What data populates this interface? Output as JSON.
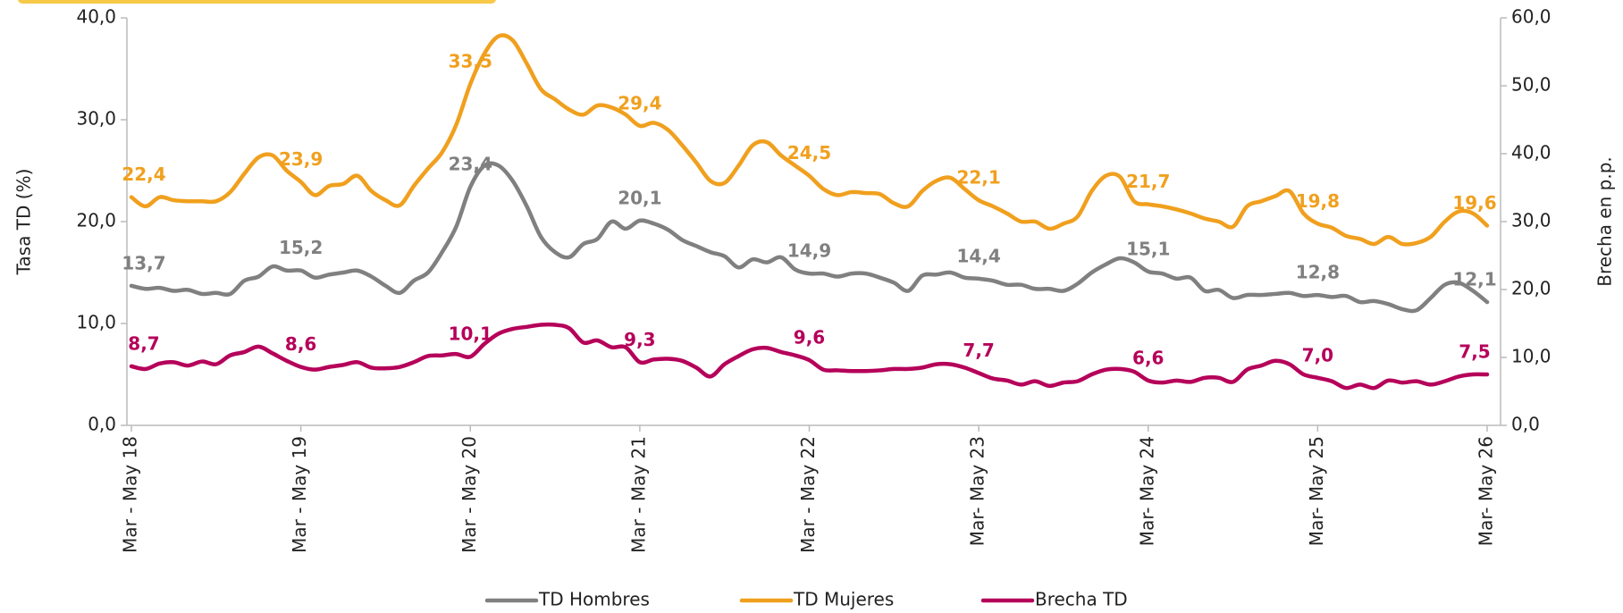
{
  "chart_data": {
    "type": "line",
    "ylabel": "Tasa TD (%)",
    "y2label": "Brecha en p.p.",
    "categories": [
      "Mar - May 18",
      null,
      null,
      null,
      null,
      null,
      null,
      null,
      null,
      null,
      null,
      null,
      "Mar - May 19",
      null,
      null,
      null,
      null,
      null,
      null,
      null,
      null,
      null,
      null,
      null,
      "Mar - May 20",
      null,
      null,
      null,
      null,
      null,
      null,
      null,
      null,
      null,
      null,
      null,
      "Mar - May 21",
      null,
      null,
      null,
      null,
      null,
      null,
      null,
      null,
      null,
      null,
      null,
      "Mar - May 22",
      null,
      null,
      null,
      null,
      null,
      null,
      null,
      null,
      null,
      null,
      null,
      "Mar- May 23",
      null,
      null,
      null,
      null,
      null,
      null,
      null,
      null,
      null,
      null,
      null,
      "Mar- May 24",
      null,
      null,
      null,
      null,
      null,
      null,
      null,
      null,
      null,
      null,
      null,
      "Mar- May 25",
      null,
      null,
      null,
      null,
      null,
      null,
      null,
      null,
      null,
      null,
      null,
      "Mar- May 26"
    ],
    "ylim": [
      0,
      40
    ],
    "yticks": [
      {
        "value": 0,
        "label": "0,0"
      },
      {
        "value": 10,
        "label": "10,0"
      },
      {
        "value": 20,
        "label": "20,0"
      },
      {
        "value": 30,
        "label": "30,0"
      },
      {
        "value": 40,
        "label": "40,0"
      }
    ],
    "y2lim": [
      0,
      60
    ],
    "y2ticks": [
      {
        "value": 0,
        "label": "0,0"
      },
      {
        "value": 10,
        "label": "10,0"
      },
      {
        "value": 20,
        "label": "20,0"
      },
      {
        "value": 30,
        "label": "30,0"
      },
      {
        "value": 40,
        "label": "40,0"
      },
      {
        "value": 50,
        "label": "50,0"
      },
      {
        "value": 60,
        "label": "60,0"
      }
    ],
    "series": [
      {
        "name": "TD Hombres",
        "color": "#808080",
        "values": [
          13.7,
          13.4,
          13.5,
          13.2,
          13.3,
          12.9,
          13.0,
          12.9,
          14.2,
          14.6,
          15.6,
          15.2,
          15.2,
          14.5,
          14.8,
          15.0,
          15.2,
          14.6,
          13.7,
          13.0,
          14.2,
          15.0,
          17.0,
          19.5,
          23.4,
          25.5,
          25.5,
          24.0,
          21.5,
          18.5,
          17.0,
          16.5,
          17.8,
          18.3,
          20.0,
          19.3,
          20.1,
          19.8,
          19.2,
          18.2,
          17.6,
          17.0,
          16.6,
          15.5,
          16.3,
          16.0,
          16.5,
          15.3,
          14.9,
          14.9,
          14.6,
          14.9,
          14.9,
          14.5,
          14.0,
          13.2,
          14.7,
          14.8,
          15.0,
          14.5,
          14.4,
          14.2,
          13.8,
          13.8,
          13.4,
          13.4,
          13.2,
          13.9,
          15.0,
          15.8,
          16.4,
          16.0,
          15.1,
          14.9,
          14.4,
          14.5,
          13.2,
          13.3,
          12.5,
          12.8,
          12.8,
          12.9,
          13.0,
          12.7,
          12.8,
          12.6,
          12.7,
          12.1,
          12.2,
          11.9,
          11.4,
          11.3,
          12.5,
          13.8,
          14.0,
          13.2,
          12.1
        ],
        "value_labels": [
          "13,7",
          null,
          null,
          null,
          null,
          null,
          null,
          null,
          null,
          null,
          null,
          null,
          "15,2",
          null,
          null,
          null,
          null,
          null,
          null,
          null,
          null,
          null,
          null,
          null,
          "23,4",
          null,
          null,
          null,
          null,
          null,
          null,
          null,
          null,
          null,
          null,
          null,
          "20,1",
          null,
          null,
          null,
          null,
          null,
          null,
          null,
          null,
          null,
          null,
          null,
          "14,9",
          null,
          null,
          null,
          null,
          null,
          null,
          null,
          null,
          null,
          null,
          null,
          "14,4",
          null,
          null,
          null,
          null,
          null,
          null,
          null,
          null,
          null,
          null,
          null,
          "15,1",
          null,
          null,
          null,
          null,
          null,
          null,
          null,
          null,
          null,
          null,
          null,
          "12,8",
          null,
          null,
          null,
          null,
          null,
          null,
          null,
          null,
          null,
          null,
          null,
          "12,1"
        ]
      },
      {
        "name": "TD Mujeres",
        "color": "#f0a01e",
        "values": [
          22.4,
          21.5,
          22.4,
          22.1,
          22.0,
          22.0,
          22.0,
          22.9,
          24.7,
          26.3,
          26.5,
          25.0,
          23.9,
          22.6,
          23.5,
          23.7,
          24.5,
          23.0,
          22.1,
          21.6,
          23.5,
          25.2,
          26.8,
          29.5,
          33.5,
          36.5,
          38.2,
          37.8,
          35.5,
          33.0,
          32.0,
          31.0,
          30.5,
          31.4,
          31.2,
          30.5,
          29.4,
          29.7,
          29.0,
          27.5,
          25.8,
          24.0,
          23.8,
          25.5,
          27.5,
          27.8,
          26.5,
          25.5,
          24.5,
          23.2,
          22.6,
          22.9,
          22.8,
          22.7,
          21.8,
          21.5,
          23.0,
          24.0,
          24.3,
          23.2,
          22.1,
          21.5,
          20.8,
          20.0,
          20.0,
          19.3,
          19.8,
          20.5,
          23.0,
          24.5,
          24.4,
          22.0,
          21.7,
          21.5,
          21.2,
          20.8,
          20.3,
          20.0,
          19.5,
          21.5,
          22.0,
          22.5,
          23.0,
          20.8,
          19.8,
          19.4,
          18.6,
          18.3,
          17.8,
          18.5,
          17.8,
          17.9,
          18.5,
          20.0,
          21.0,
          20.8,
          19.6
        ],
        "value_labels": [
          "22,4",
          null,
          null,
          null,
          null,
          null,
          null,
          null,
          null,
          null,
          null,
          null,
          "23,9",
          null,
          null,
          null,
          null,
          null,
          null,
          null,
          null,
          null,
          null,
          null,
          "33,5",
          null,
          null,
          null,
          null,
          null,
          null,
          null,
          null,
          null,
          null,
          null,
          "29,4",
          null,
          null,
          null,
          null,
          null,
          null,
          null,
          null,
          null,
          null,
          null,
          "24,5",
          null,
          null,
          null,
          null,
          null,
          null,
          null,
          null,
          null,
          null,
          null,
          "22,1",
          null,
          null,
          null,
          null,
          null,
          null,
          null,
          null,
          null,
          null,
          null,
          "21,7",
          null,
          null,
          null,
          null,
          null,
          null,
          null,
          null,
          null,
          null,
          null,
          "19,8",
          null,
          null,
          null,
          null,
          null,
          null,
          null,
          null,
          null,
          null,
          null,
          "19,6"
        ]
      },
      {
        "name": "Brecha TD",
        "color": "#b5005a",
        "axis": "y2",
        "values": [
          8.7,
          8.3,
          9.1,
          9.3,
          8.8,
          9.4,
          9.0,
          10.3,
          10.8,
          11.6,
          10.6,
          9.5,
          8.6,
          8.2,
          8.6,
          8.9,
          9.3,
          8.5,
          8.4,
          8.6,
          9.3,
          10.2,
          10.3,
          10.5,
          10.1,
          12.0,
          13.5,
          14.2,
          14.5,
          14.8,
          14.8,
          14.3,
          12.2,
          12.5,
          11.5,
          11.5,
          9.3,
          9.7,
          9.8,
          9.5,
          8.5,
          7.2,
          9.0,
          10.2,
          11.2,
          11.4,
          10.8,
          10.3,
          9.6,
          8.2,
          8.1,
          8.0,
          8.0,
          8.1,
          8.3,
          8.3,
          8.5,
          9.0,
          9.0,
          8.5,
          7.7,
          6.9,
          6.6,
          6.0,
          6.5,
          5.8,
          6.3,
          6.5,
          7.5,
          8.2,
          8.3,
          7.9,
          6.6,
          6.3,
          6.6,
          6.4,
          7.0,
          7.0,
          6.4,
          8.2,
          8.8,
          9.5,
          9.0,
          7.5,
          7.0,
          6.5,
          5.5,
          6.0,
          5.5,
          6.6,
          6.3,
          6.5,
          6.0,
          6.5,
          7.2,
          7.5,
          7.5
        ],
        "value_labels": [
          "8,7",
          null,
          null,
          null,
          null,
          null,
          null,
          null,
          null,
          null,
          null,
          null,
          "8,6",
          null,
          null,
          null,
          null,
          null,
          null,
          null,
          null,
          null,
          null,
          null,
          "10,1",
          null,
          null,
          null,
          null,
          null,
          null,
          null,
          null,
          null,
          null,
          null,
          "9,3",
          null,
          null,
          null,
          null,
          null,
          null,
          null,
          null,
          null,
          null,
          null,
          "9,6",
          null,
          null,
          null,
          null,
          null,
          null,
          null,
          null,
          null,
          null,
          null,
          "7,7",
          null,
          null,
          null,
          null,
          null,
          null,
          null,
          null,
          null,
          null,
          null,
          "6,6",
          null,
          null,
          null,
          null,
          null,
          null,
          null,
          null,
          null,
          null,
          null,
          "7,0",
          null,
          null,
          null,
          null,
          null,
          null,
          null,
          null,
          null,
          null,
          null,
          "7,5"
        ]
      }
    ],
    "legend": "bottom",
    "grid": false
  }
}
